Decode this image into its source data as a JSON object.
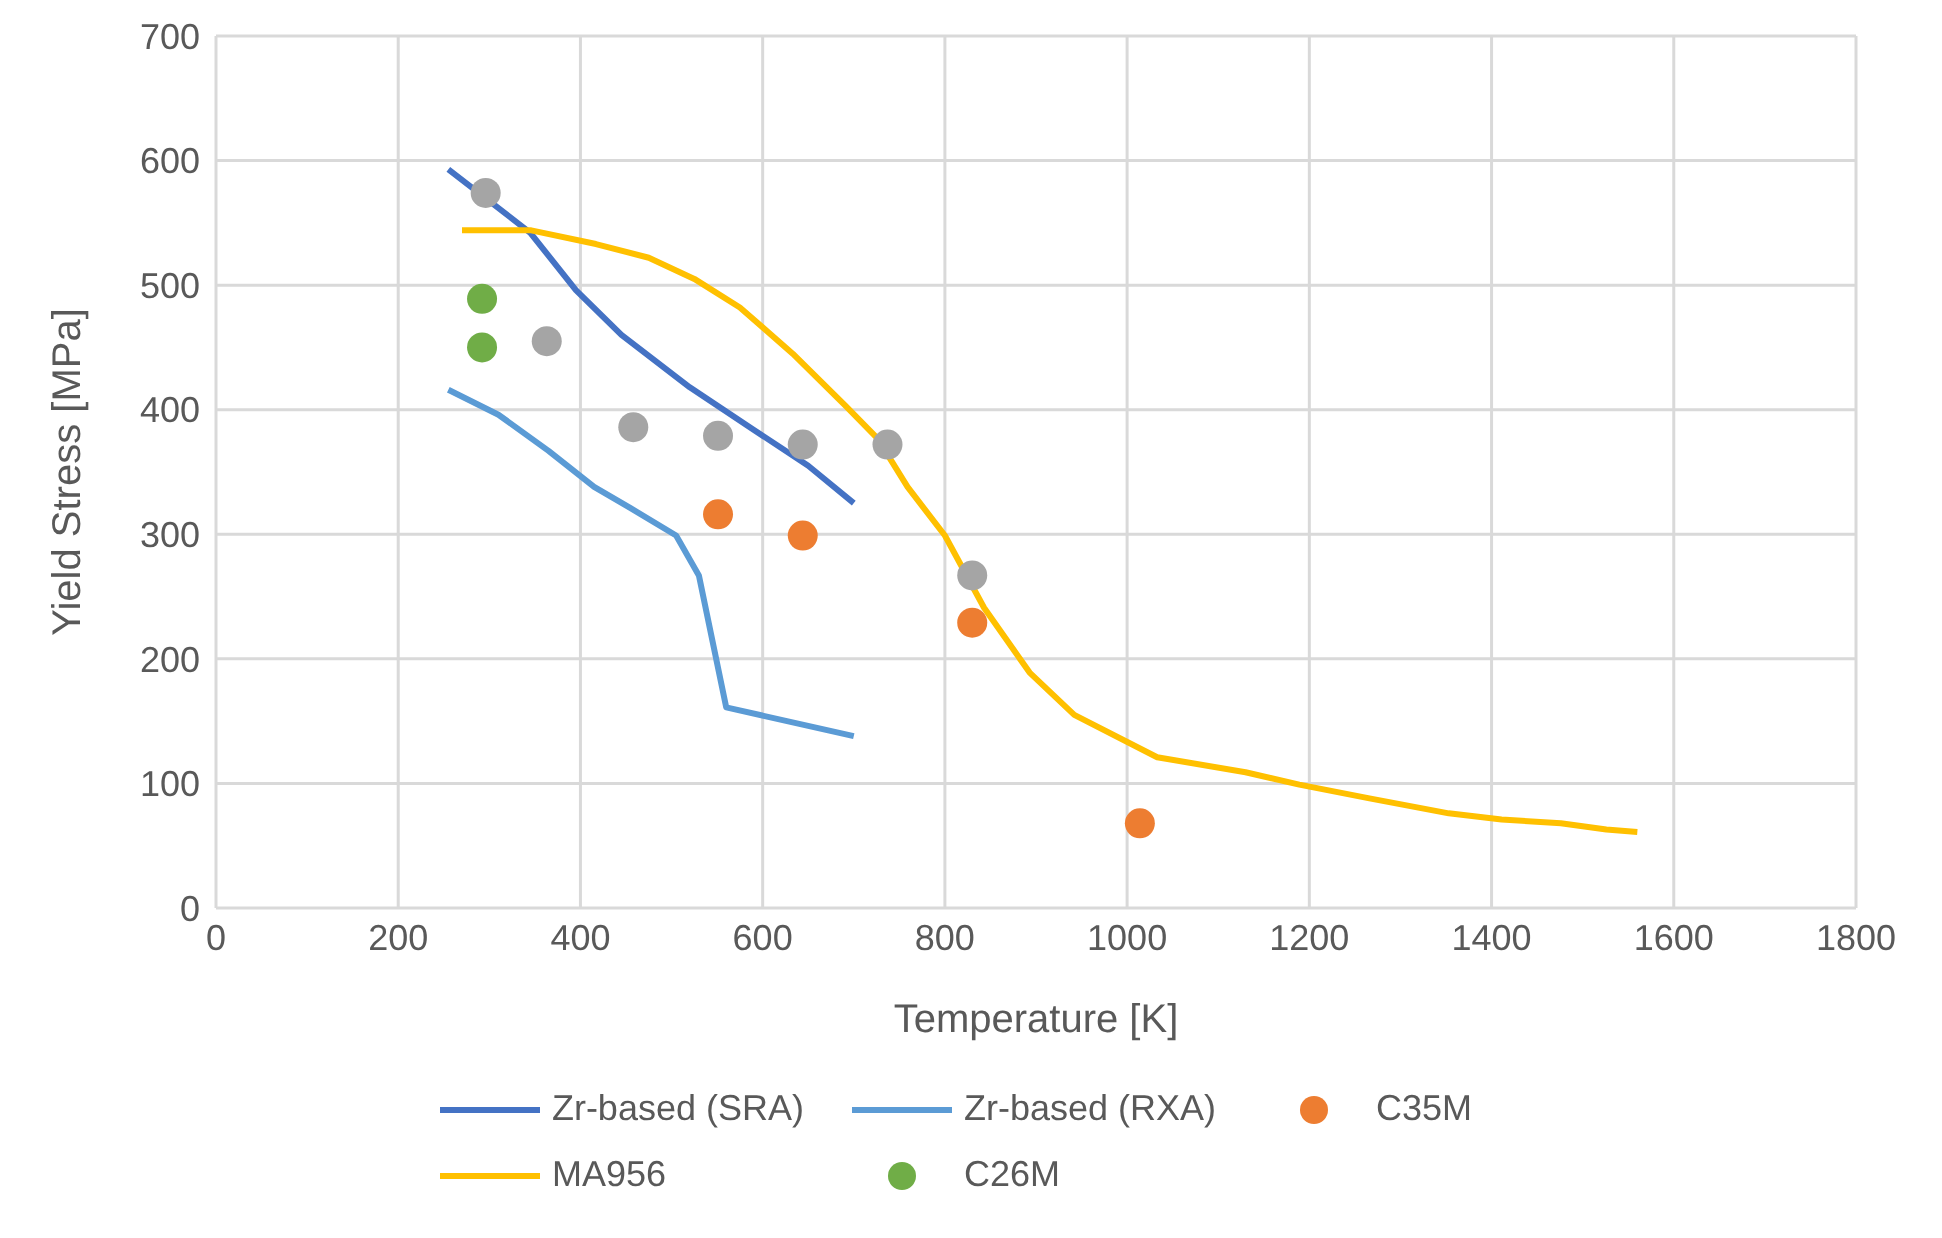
{
  "chart_data": {
    "type": "line",
    "xlabel": "Temperature  [K]",
    "ylabel": "Yield Stress [MPa]",
    "xlim": [
      0,
      1800
    ],
    "xticks": [
      0,
      200,
      400,
      600,
      800,
      1000,
      1200,
      1400,
      1600,
      1800
    ],
    "ylim": [
      0,
      700
    ],
    "yticks": [
      0,
      100,
      200,
      300,
      400,
      500,
      600,
      700
    ],
    "grid": true,
    "legend": "bottom",
    "series": [
      {
        "name": "Zr-based (SRA)",
        "marker": "none",
        "color": "#4472c4",
        "x": [
          255,
          345,
          395,
          445,
          520,
          590,
          650,
          700
        ],
        "values": [
          593,
          542,
          496,
          460,
          418,
          384,
          355,
          325
        ]
      },
      {
        "name": "Zr-based (RXA)",
        "marker": "none",
        "color": "#5b9bd5",
        "x": [
          255,
          310,
          365,
          415,
          455,
          505,
          530,
          560,
          700
        ],
        "values": [
          416,
          396,
          367,
          338,
          321,
          299,
          267,
          161,
          138
        ]
      },
      {
        "name": "C35M",
        "type": "scatter",
        "marker": "circle",
        "color": "#ed7d31",
        "x": [
          551,
          644,
          830,
          1014
        ],
        "values": [
          316,
          299,
          229,
          68
        ]
      },
      {
        "type": "scatter",
        "marker": "circle",
        "color": "#a5a5a5",
        "x": [
          296,
          363,
          458,
          551,
          644,
          737,
          830
        ],
        "values": [
          574,
          455,
          386,
          379,
          372,
          372,
          267
        ]
      },
      {
        "name": "MA956",
        "marker": "none",
        "color": "#ffc000",
        "x": [
          270,
          346,
          417,
          475,
          525,
          575,
          633,
          691,
          726,
          759,
          800,
          843,
          893,
          942,
          1033,
          1130,
          1189,
          1266,
          1353,
          1411,
          1476,
          1526,
          1560
        ],
        "values": [
          544,
          544,
          533,
          522,
          505,
          482,
          445,
          403,
          377,
          338,
          299,
          241,
          189,
          155,
          121,
          109,
          99,
          88,
          76,
          71,
          68,
          63,
          61
        ]
      },
      {
        "name": "C26M",
        "type": "scatter",
        "marker": "circle",
        "color": "#70ad47",
        "x": [
          292,
          292
        ],
        "values": [
          489,
          450
        ]
      }
    ]
  }
}
